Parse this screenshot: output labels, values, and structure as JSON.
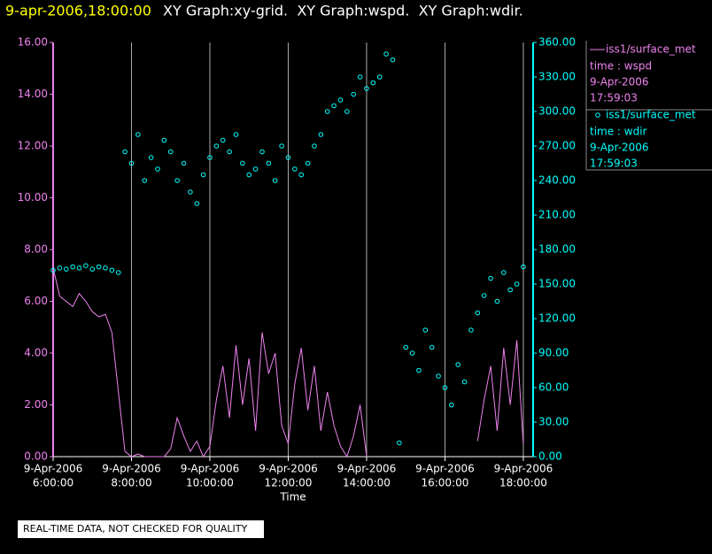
{
  "header": {
    "date_label": "9-apr-2006,18:00:00",
    "title": "XY Graph:xy-grid.  XY Graph:wspd.  XY Graph:wdir."
  },
  "footnote": "REAL-TIME DATA, NOT CHECKED FOR QUALITY",
  "chart_data": {
    "type": "line",
    "xlabel": "Time",
    "x": [
      "2006-04-09 06:00",
      "2006-04-09 06:10",
      "2006-04-09 06:20",
      "2006-04-09 06:30",
      "2006-04-09 06:40",
      "2006-04-09 06:50",
      "2006-04-09 07:00",
      "2006-04-09 07:10",
      "2006-04-09 07:20",
      "2006-04-09 07:30",
      "2006-04-09 07:40",
      "2006-04-09 07:50",
      "2006-04-09 08:00",
      "2006-04-09 08:10",
      "2006-04-09 08:20",
      "2006-04-09 08:30",
      "2006-04-09 08:40",
      "2006-04-09 08:50",
      "2006-04-09 09:00",
      "2006-04-09 09:10",
      "2006-04-09 09:20",
      "2006-04-09 09:30",
      "2006-04-09 09:40",
      "2006-04-09 09:50",
      "2006-04-09 10:00",
      "2006-04-09 10:10",
      "2006-04-09 10:20",
      "2006-04-09 10:30",
      "2006-04-09 10:40",
      "2006-04-09 10:50",
      "2006-04-09 11:00",
      "2006-04-09 11:10",
      "2006-04-09 11:20",
      "2006-04-09 11:30",
      "2006-04-09 11:40",
      "2006-04-09 11:50",
      "2006-04-09 12:00",
      "2006-04-09 12:10",
      "2006-04-09 12:20",
      "2006-04-09 12:30",
      "2006-04-09 12:40",
      "2006-04-09 12:50",
      "2006-04-09 13:00",
      "2006-04-09 13:10",
      "2006-04-09 13:20",
      "2006-04-09 13:30",
      "2006-04-09 13:40",
      "2006-04-09 13:50",
      "2006-04-09 14:00",
      "2006-04-09 14:10",
      "2006-04-09 14:20",
      "2006-04-09 14:30",
      "2006-04-09 14:40",
      "2006-04-09 14:50",
      "2006-04-09 15:00",
      "2006-04-09 15:10",
      "2006-04-09 15:20",
      "2006-04-09 15:30",
      "2006-04-09 15:40",
      "2006-04-09 15:50",
      "2006-04-09 16:00",
      "2006-04-09 16:10",
      "2006-04-09 16:20",
      "2006-04-09 16:30",
      "2006-04-09 16:40",
      "2006-04-09 16:50",
      "2006-04-09 17:00",
      "2006-04-09 17:10",
      "2006-04-09 17:20",
      "2006-04-09 17:30",
      "2006-04-09 17:40",
      "2006-04-09 17:50",
      "2006-04-09 18:00"
    ],
    "xlim": [
      "2006-04-09 06:00",
      "2006-04-09 18:15"
    ],
    "xticks": [
      {
        "value": "2006-04-09 06:00",
        "label": [
          "9-Apr-2006",
          "6:00:00"
        ]
      },
      {
        "value": "2006-04-09 08:00",
        "label": [
          "9-Apr-2006",
          "8:00:00"
        ]
      },
      {
        "value": "2006-04-09 10:00",
        "label": [
          "9-Apr-2006",
          "10:00:00"
        ]
      },
      {
        "value": "2006-04-09 12:00",
        "label": [
          "9-Apr-2006",
          "12:00:00"
        ]
      },
      {
        "value": "2006-04-09 14:00",
        "label": [
          "9-Apr-2006",
          "14:00:00"
        ]
      },
      {
        "value": "2006-04-09 16:00",
        "label": [
          "9-Apr-2006",
          "16:00:00"
        ]
      },
      {
        "value": "2006-04-09 18:00",
        "label": [
          "9-Apr-2006",
          "18:00:00"
        ]
      }
    ],
    "ylim": [
      0,
      16
    ],
    "yticks": [
      {
        "value": 0,
        "label": "0.00"
      },
      {
        "value": 2,
        "label": "2.00"
      },
      {
        "value": 4,
        "label": "4.00"
      },
      {
        "value": 6,
        "label": "6.00"
      },
      {
        "value": 8,
        "label": "8.00"
      },
      {
        "value": 10,
        "label": "10.00"
      },
      {
        "value": 12,
        "label": "12.00"
      },
      {
        "value": 14,
        "label": "14.00"
      },
      {
        "value": 16,
        "label": "16.00"
      }
    ],
    "y2lim": [
      0,
      360
    ],
    "y2ticks": [
      {
        "value": 0,
        "label": "0.00"
      },
      {
        "value": 30,
        "label": "30.00"
      },
      {
        "value": 60,
        "label": "60.00"
      },
      {
        "value": 90,
        "label": "90.00"
      },
      {
        "value": 120,
        "label": "120.00"
      },
      {
        "value": 150,
        "label": "150.00"
      },
      {
        "value": 180,
        "label": "180.00"
      },
      {
        "value": 210,
        "label": "210.00"
      },
      {
        "value": 240,
        "label": "240.00"
      },
      {
        "value": 270,
        "label": "270.00"
      },
      {
        "value": 300,
        "label": "300.00"
      },
      {
        "value": 330,
        "label": "330.00"
      },
      {
        "value": 360,
        "label": "360.00"
      }
    ],
    "grid": true,
    "series": [
      {
        "name": "iss1/surface_met",
        "legend_lines": [
          "time : wspd",
          "9-Apr-2006",
          "17:59:03"
        ],
        "color": "#ee82ee",
        "marker": "line",
        "values": [
          7.3,
          6.2,
          6.0,
          5.8,
          6.3,
          6.0,
          5.6,
          5.4,
          5.5,
          4.8,
          2.5,
          0.2,
          0,
          0.1,
          0,
          0,
          0,
          0,
          0.3,
          1.5,
          0.8,
          0.2,
          0.6,
          0,
          0.4,
          2.2,
          3.5,
          1.5,
          4.3,
          2.0,
          3.8,
          1.0,
          4.8,
          3.2,
          4.0,
          1.2,
          0.5,
          2.8,
          4.2,
          1.8,
          3.5,
          1.0,
          2.5,
          1.2,
          0.4,
          0,
          0.8,
          2.0,
          0,
          null,
          null,
          null,
          null,
          null,
          null,
          null,
          null,
          null,
          null,
          null,
          null,
          null,
          null,
          null,
          null,
          0.6,
          2.2,
          3.5,
          1.0,
          4.2,
          2.0,
          4.5,
          0.5
        ]
      },
      {
        "name": "iss1/surface_met",
        "legend_lines": [
          "time : wdir",
          "9-Apr-2006",
          "17:59:03"
        ],
        "color": "#00ffff",
        "marker": "circle",
        "axis": "y2",
        "values": [
          162,
          164,
          163,
          165,
          164,
          166,
          163,
          165,
          164,
          162,
          160,
          265,
          255,
          280,
          240,
          260,
          250,
          275,
          265,
          240,
          255,
          230,
          220,
          245,
          260,
          270,
          275,
          265,
          280,
          255,
          245,
          250,
          265,
          255,
          240,
          270,
          260,
          250,
          245,
          255,
          270,
          280,
          300,
          305,
          310,
          300,
          315,
          330,
          320,
          325,
          330,
          350,
          345,
          12,
          95,
          90,
          75,
          110,
          95,
          70,
          60,
          45,
          80,
          65,
          110,
          125,
          140,
          155,
          135,
          160,
          145,
          150,
          165
        ]
      }
    ]
  }
}
